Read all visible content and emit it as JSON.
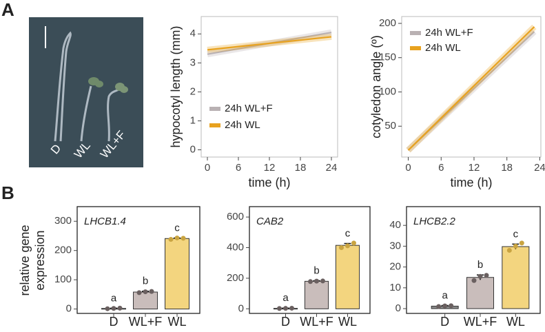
{
  "figure": {
    "panels": [
      "A",
      "B"
    ],
    "photo_labels": [
      "D",
      "WL",
      "WL+F"
    ]
  },
  "chart_data": [
    {
      "type": "line",
      "xlabel": "time (h)",
      "ylabel": "hypocotyl length (mm)",
      "xlim": [
        -1.2,
        25.2
      ],
      "xticks": [
        0,
        6,
        12,
        18,
        24
      ],
      "ylim": [
        -0.25,
        4.6
      ],
      "yticks": [
        0,
        1,
        2,
        3,
        4
      ],
      "legend": "lower-left",
      "series": [
        {
          "name": "24h WL+F",
          "color": "#b9b1b3",
          "x": [
            0,
            24
          ],
          "values": [
            3.3,
            4.05
          ]
        },
        {
          "name": "24h WL",
          "color": "#e8a21f",
          "x": [
            0,
            24
          ],
          "values": [
            3.45,
            3.9
          ]
        }
      ]
    },
    {
      "type": "line",
      "xlabel": "time (h)",
      "ylabel": "cotyledon angle (º)",
      "xlim": [
        -1.2,
        24.2
      ],
      "xticks": [
        0,
        6,
        12,
        18,
        24
      ],
      "ylim": [
        5,
        210
      ],
      "yticks": [
        50,
        100,
        150,
        200
      ],
      "legend": "upper-left",
      "series": [
        {
          "name": "24h WL+F",
          "color": "#b9b1b3",
          "x": [
            0,
            23
          ],
          "values": [
            15,
            188
          ]
        },
        {
          "name": "24h WL",
          "color": "#e8a21f",
          "x": [
            0,
            23
          ],
          "values": [
            15,
            195
          ]
        }
      ]
    },
    {
      "type": "bar",
      "title": "LHCB1.4",
      "ylabel": "relative gene expression",
      "categories": [
        "D",
        "WL+F",
        "WL"
      ],
      "colors": [
        "#8a8a8a",
        "#c9bdbb",
        "#f3d57f"
      ],
      "values": [
        2,
        58,
        241
      ],
      "errors": [
        1,
        3,
        2
      ],
      "value_labels": [
        "a",
        "b",
        "c"
      ],
      "points": [
        [
          1,
          2,
          3
        ],
        [
          56,
          59,
          60
        ],
        [
          238,
          243,
          242
        ]
      ],
      "ylim": [
        -15,
        350
      ],
      "yticks": [
        0,
        100,
        200,
        300
      ]
    },
    {
      "type": "bar",
      "title": "CAB2",
      "categories": [
        "D",
        "WL+F",
        "WL"
      ],
      "colors": [
        "#8a8a8a",
        "#c9bdbb",
        "#f3d57f"
      ],
      "values": [
        3,
        180,
        415
      ],
      "errors": [
        2,
        4,
        12
      ],
      "value_labels": [
        "a",
        "b",
        "c"
      ],
      "points": [
        [
          2,
          3,
          4
        ],
        [
          178,
          181,
          182
        ],
        [
          400,
          412,
          430
        ]
      ],
      "ylim": [
        -30,
        668
      ],
      "yticks": [
        0,
        200,
        400,
        600
      ]
    },
    {
      "type": "bar",
      "title": "LHCB2.2",
      "categories": [
        "D",
        "WL+F",
        "WL"
      ],
      "colors": [
        "#8a8a8a",
        "#c9bdbb",
        "#f3d57f"
      ],
      "values": [
        1.2,
        15,
        29.8
      ],
      "errors": [
        0.3,
        1.2,
        1.2
      ],
      "value_labels": [
        "a",
        "b",
        "c"
      ],
      "points": [
        [
          1,
          1.3,
          1.4
        ],
        [
          13.5,
          15.5,
          16
        ],
        [
          28,
          30,
          31.5
        ]
      ],
      "ylim": [
        -2.3,
        49
      ],
      "yticks": [
        0,
        10,
        20,
        30,
        40
      ]
    }
  ]
}
